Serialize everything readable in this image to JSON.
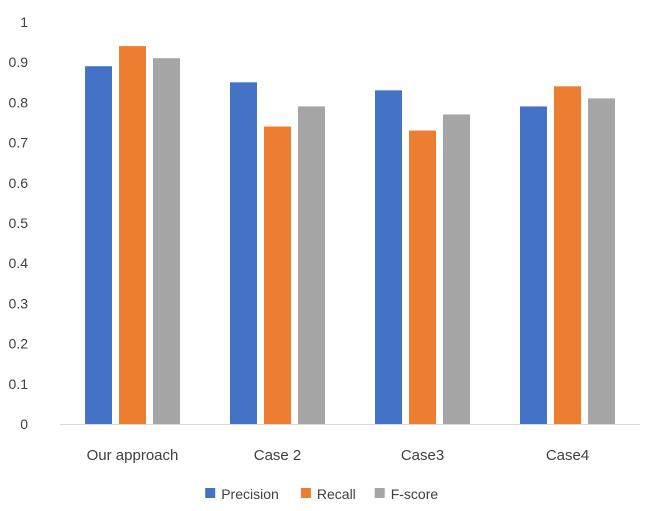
{
  "chart_data": {
    "type": "bar",
    "title": "",
    "xlabel": "",
    "ylabel": "",
    "ylim": [
      0,
      1
    ],
    "yticks": [
      0,
      0.1,
      0.2,
      0.3,
      0.4,
      0.5,
      0.6,
      0.7,
      0.8,
      0.9,
      1
    ],
    "ytick_labels": [
      "0",
      "0.1",
      "0.2",
      "0.3",
      "0.4",
      "0.5",
      "0.6",
      "0.7",
      "0.8",
      "0.9",
      "1"
    ],
    "categories": [
      "Our approach",
      "Case 2",
      "Case3",
      "Case4"
    ],
    "series": [
      {
        "name": "Precision",
        "color": "#4472C4",
        "values": [
          0.89,
          0.85,
          0.83,
          0.79
        ]
      },
      {
        "name": "Recall",
        "color": "#ED7D31",
        "values": [
          0.94,
          0.74,
          0.73,
          0.84
        ]
      },
      {
        "name": "F-score",
        "color": "#A5A5A5",
        "values": [
          0.91,
          0.79,
          0.77,
          0.81
        ]
      }
    ],
    "grid": false,
    "legend_position": "bottom"
  }
}
